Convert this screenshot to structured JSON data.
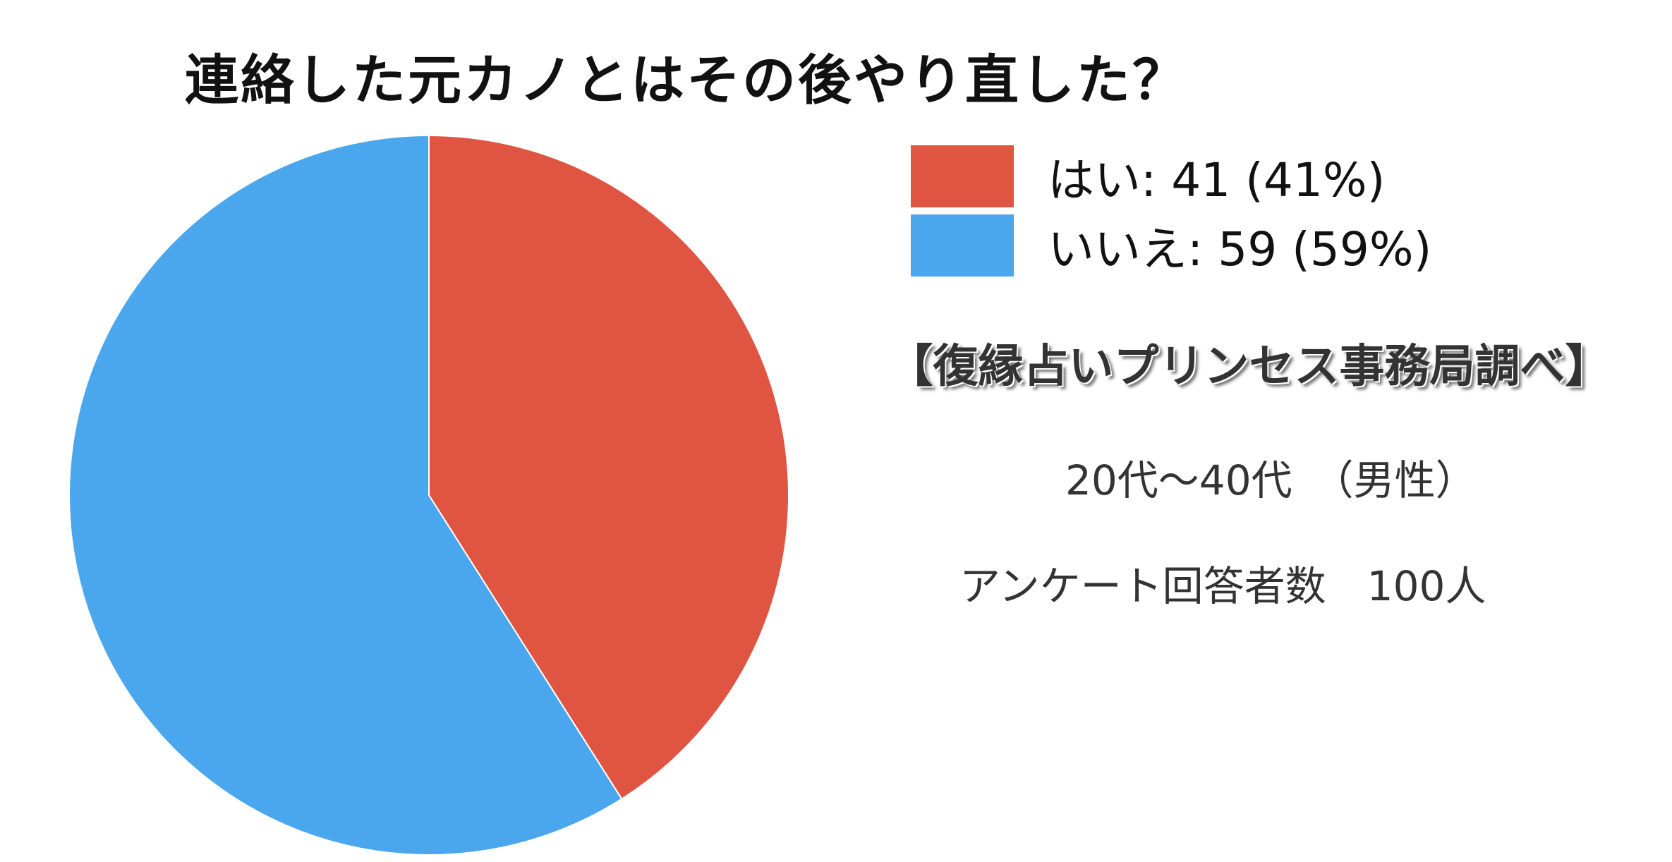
{
  "chart_data": {
    "type": "pie",
    "title": "連絡した元カノとはその後やり直した？",
    "slices": [
      {
        "label": "はい",
        "value": 41,
        "percent": 41,
        "color": "#e05442"
      },
      {
        "label": "いいえ",
        "value": 59,
        "percent": 59,
        "color": "#4aa7ee"
      }
    ],
    "legend": [
      "はい: 41 (41%)",
      "いいえ: 59 (59%)"
    ],
    "legend_position": "right",
    "start_angle_deg": 0,
    "direction": "clockwise"
  },
  "annotations": {
    "source": "【復縁占いプリンセス事務局調べ】",
    "age_group": "20代～40代　（男性）",
    "respondents": "アンケート回答者数　100人"
  }
}
